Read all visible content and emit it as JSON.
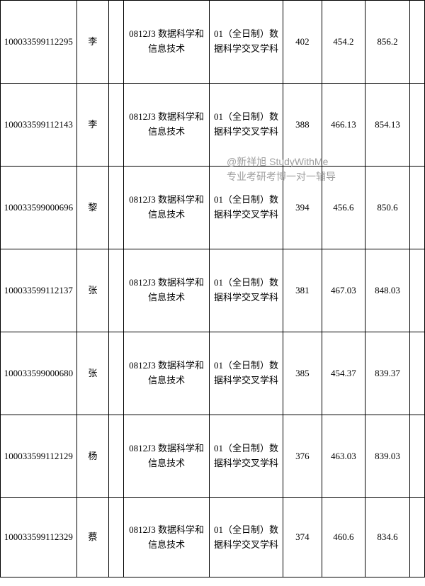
{
  "watermark": {
    "line1": "@新祥旭 StudyWithMe",
    "line2": "专业考研考博一对一辅导"
  },
  "common": {
    "major": "0812J3 数据科学和信息技术",
    "direction": "01（全日制）数据科学交叉学科"
  },
  "rows": [
    {
      "id": "100033599112295",
      "name": "李",
      "score1": "402",
      "score2": "454.2",
      "total": "856.2"
    },
    {
      "id": "100033599112143",
      "name": "李",
      "score1": "388",
      "score2": "466.13",
      "total": "854.13"
    },
    {
      "id": "100033599000696",
      "name": "黎",
      "score1": "394",
      "score2": "456.6",
      "total": "850.6"
    },
    {
      "id": "100033599112137",
      "name": "张",
      "score1": "381",
      "score2": "467.03",
      "total": "848.03"
    },
    {
      "id": "100033599000680",
      "name": "张",
      "score1": "385",
      "score2": "454.37",
      "total": "839.37"
    },
    {
      "id": "100033599112129",
      "name": "杨",
      "score1": "376",
      "score2": "463.03",
      "total": "839.03"
    },
    {
      "id": "100033599112329",
      "name": "蔡",
      "score1": "374",
      "score2": "460.6",
      "total": "834.6"
    }
  ]
}
